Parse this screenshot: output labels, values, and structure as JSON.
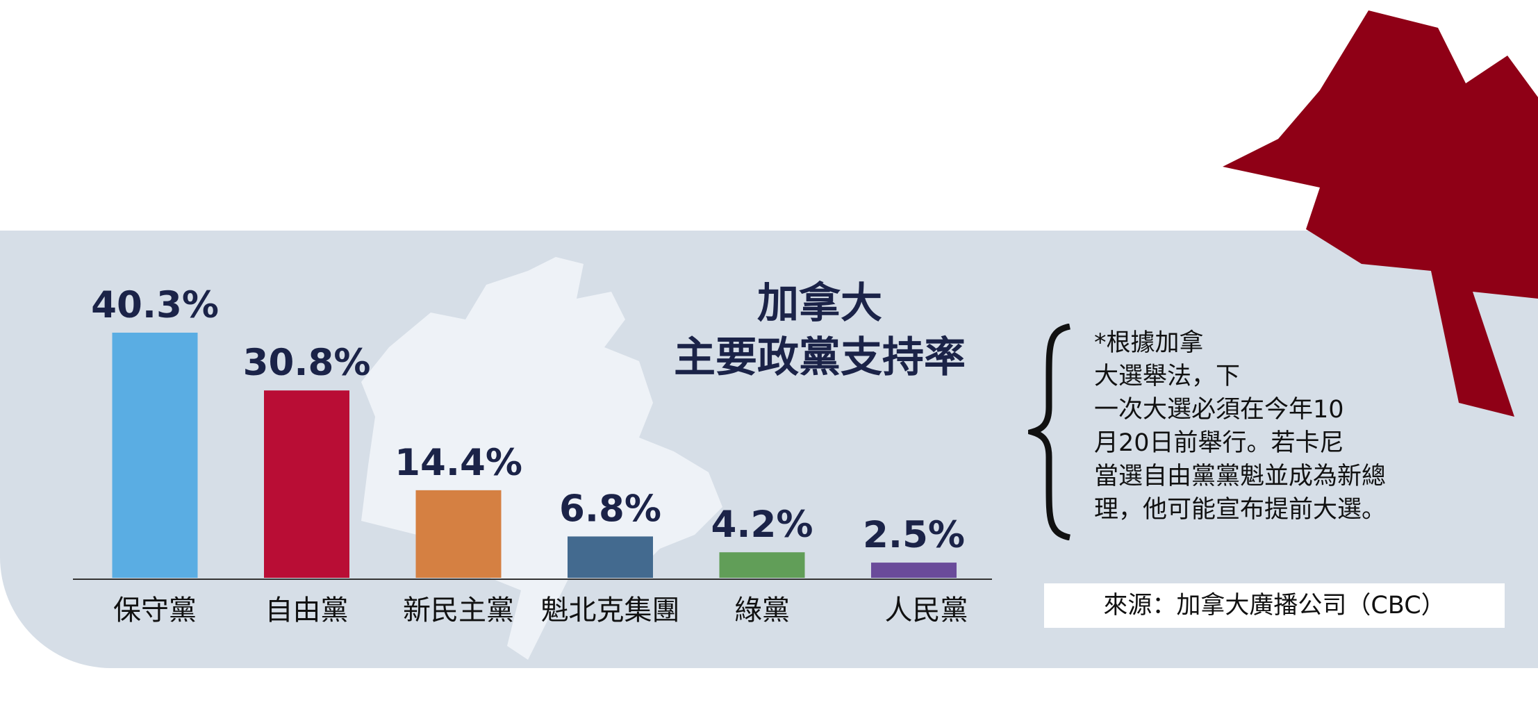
{
  "chart_data": {
    "type": "bar",
    "title": "加拿大\n主要政黨支持率",
    "title_lines": [
      "加拿大",
      "主要政黨支持率"
    ],
    "categories": [
      "保守黨",
      "自由黨",
      "新民主黨",
      "魁北克集團",
      "綠黨",
      "人民黨"
    ],
    "values": [
      40.3,
      30.8,
      14.4,
      6.8,
      4.2,
      2.5
    ],
    "value_labels": [
      "40.3%",
      "30.8%",
      "14.4%",
      "6.8%",
      "4.2%",
      "2.5%"
    ],
    "colors": [
      "#5aade3",
      "#b90d35",
      "#d58042",
      "#436a8f",
      "#619e58",
      "#6a4b9a"
    ],
    "ylim": [
      0,
      40.3
    ],
    "xlabel": "",
    "ylabel": "",
    "grid": false
  },
  "note": {
    "lines": [
      "*根據加拿",
      "大選舉法，下",
      "一次大選必須在今年10",
      "月20日前舉行。若卡尼",
      "當選自由黨黨魁並成為新總",
      "理，他可能宣布提前大選。"
    ]
  },
  "source": "來源：加拿大廣播公司（CBC）",
  "colors": {
    "panel": "#d6dee7",
    "map": "#eef2f7",
    "leaf": "#8f0016",
    "text": "#1b2348"
  }
}
